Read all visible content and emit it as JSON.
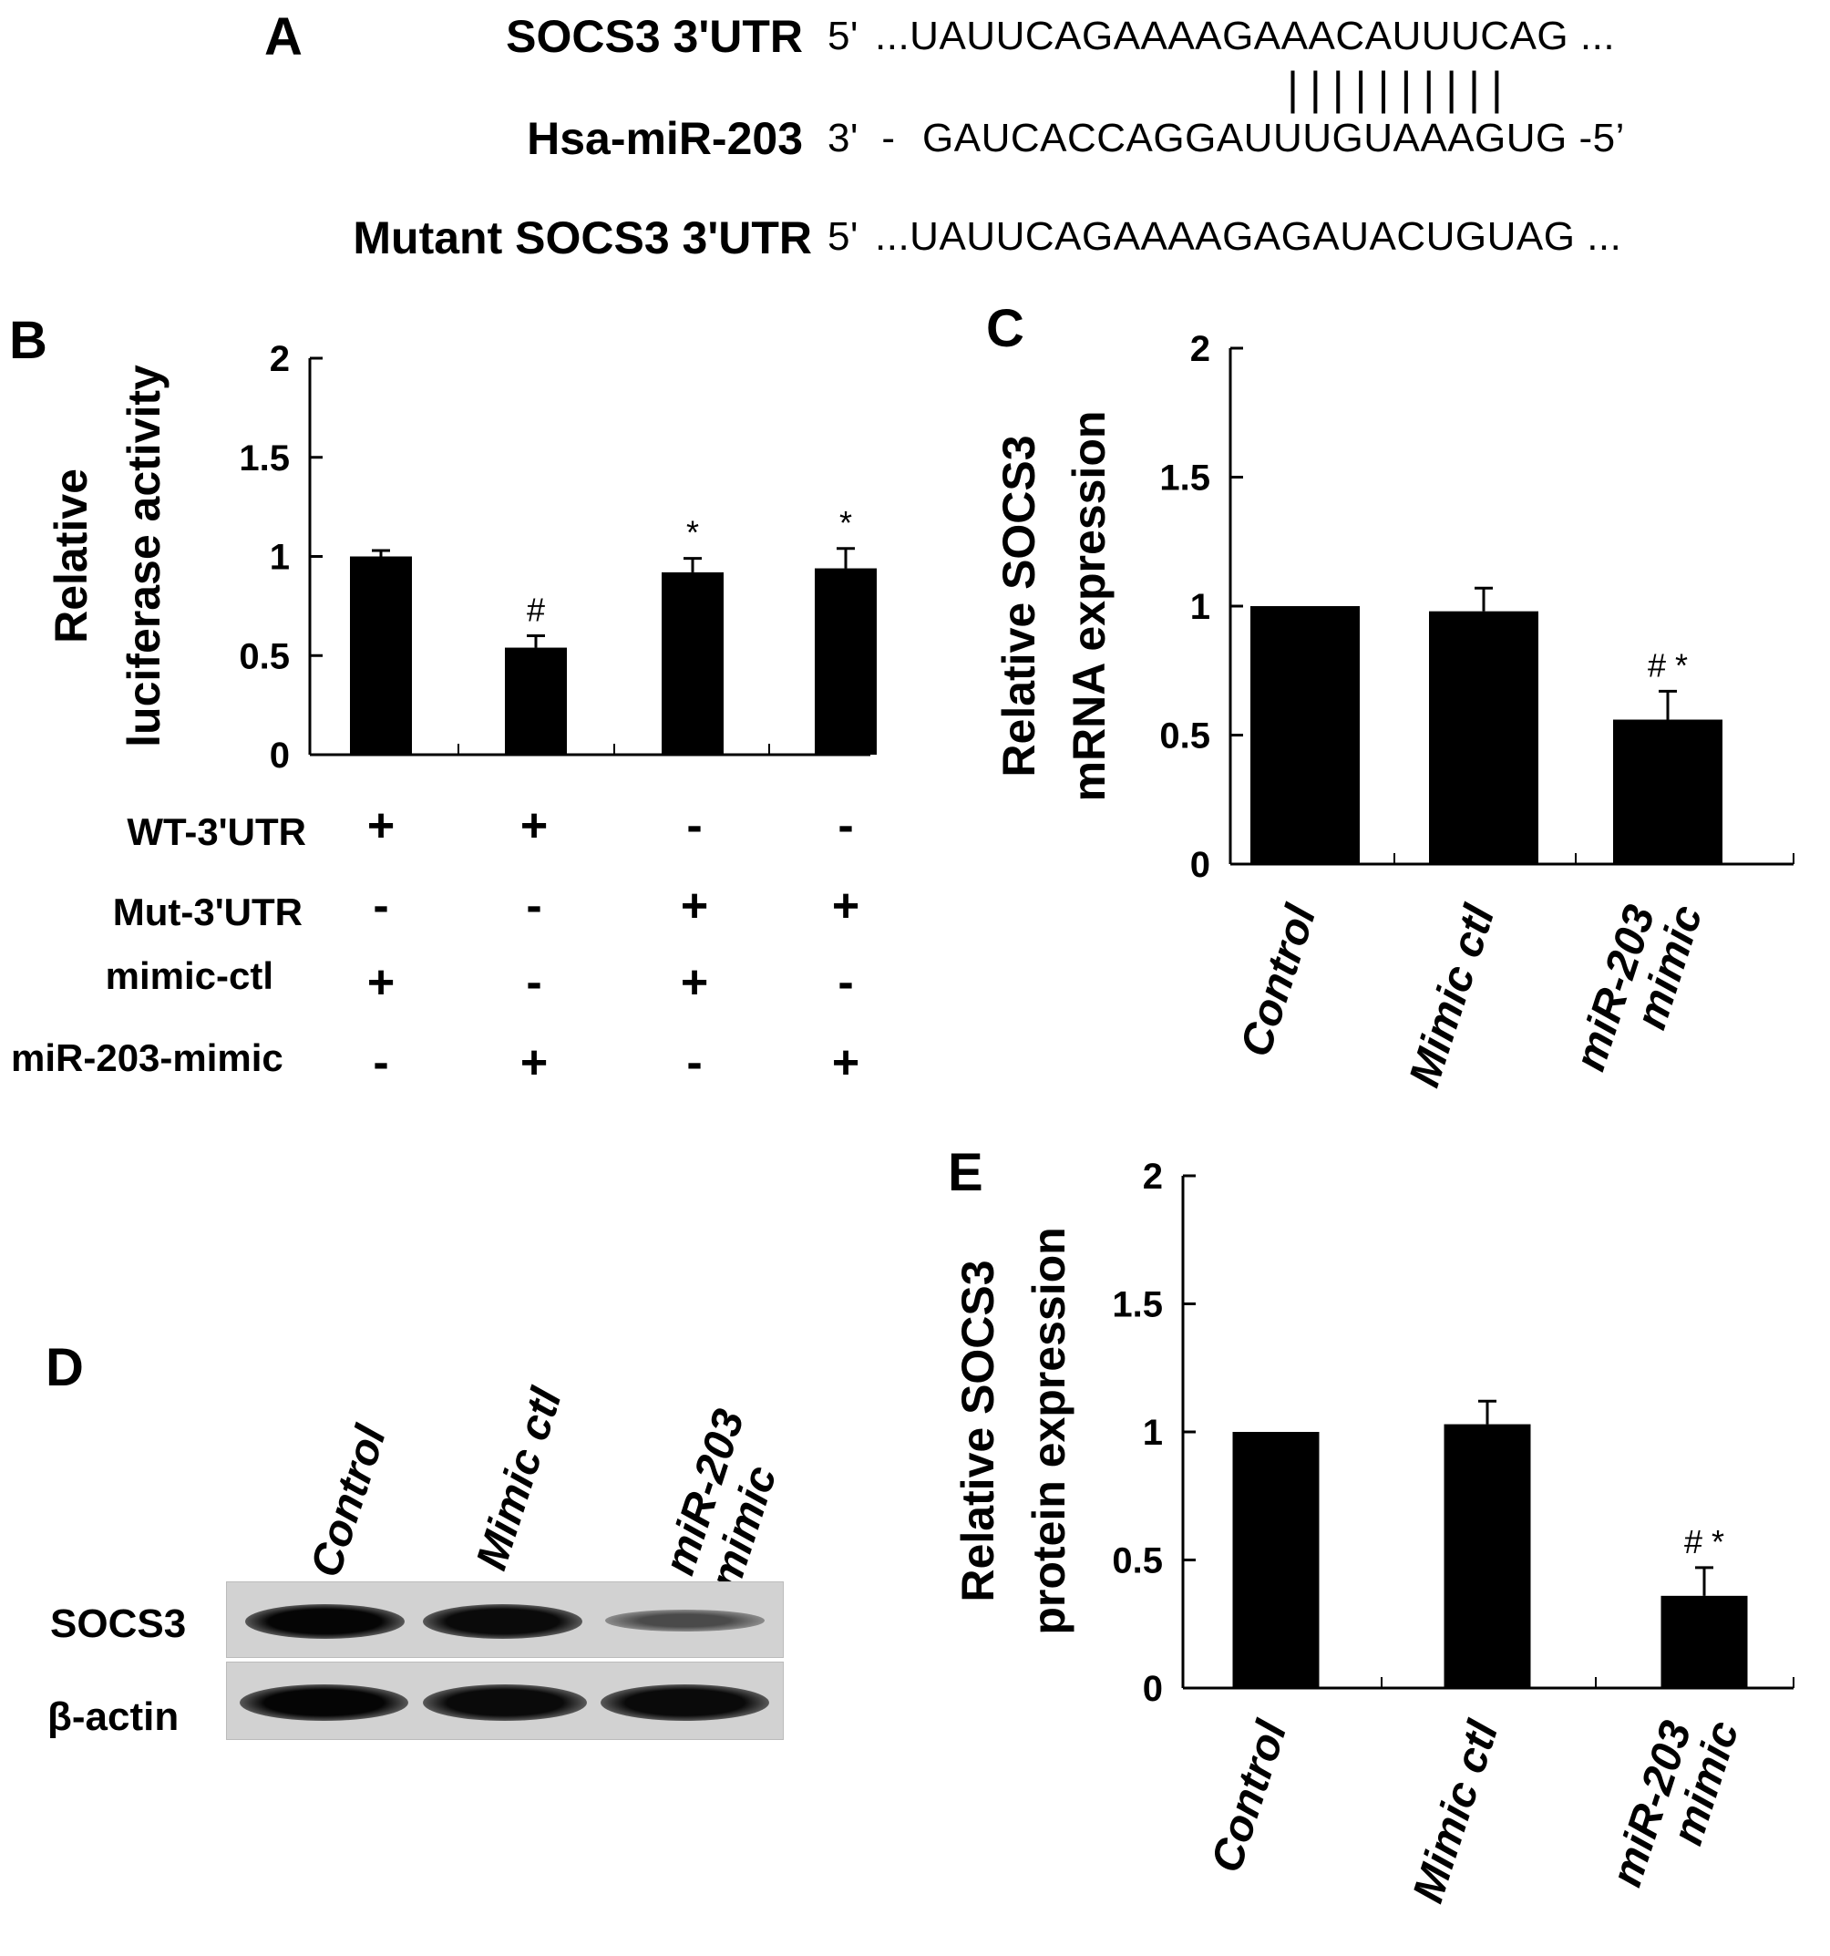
{
  "panel_a": {
    "letter": "A",
    "rows": [
      {
        "label": "SOCS3 3'UTR",
        "prefix": "5'",
        "sequence": "...UAUUCAGAAAAGAAACAUUUCAG ..."
      },
      {
        "label": "Hsa-miR-203",
        "prefix": "3'  -",
        "sequence": "GAUCACCAGGAUUUGUAAAGUG -5’"
      },
      {
        "label": "Mutant SOCS3 3'UTR",
        "prefix": "5'",
        "sequence": "...UAUUCAGAAAAGAGAUACUGUAG ..."
      }
    ],
    "pairing": "| | | | | | | | | |"
  },
  "panel_b": {
    "letter": "B",
    "conditions": [
      {
        "label": "WT-3'UTR",
        "signs": [
          "+",
          "+",
          "-",
          "-"
        ]
      },
      {
        "label": "Mut-3'UTR",
        "signs": [
          "-",
          "-",
          "+",
          "+"
        ]
      },
      {
        "label": "mimic-ctl",
        "signs": [
          "+",
          "-",
          "+",
          "-"
        ]
      },
      {
        "label": "miR-203-mimic",
        "signs": [
          "-",
          "+",
          "-",
          "+"
        ]
      }
    ]
  },
  "panel_d": {
    "letter": "D",
    "lanes": [
      "Control",
      "Mimic ctl",
      "miR-203 mimic"
    ],
    "rows": [
      "SOCS3",
      "β-actin"
    ],
    "band_intensity": {
      "SOCS3": [
        1.0,
        1.0,
        0.45
      ],
      "β-actin": [
        1.0,
        1.0,
        1.0
      ]
    }
  },
  "chart_data": [
    {
      "panel": "B",
      "type": "bar",
      "ylabel": "Relative luciferase activity",
      "ylabel_lines": [
        "Relative",
        "luciferase activity"
      ],
      "categories": [
        "",
        "",
        "",
        ""
      ],
      "values": [
        1.0,
        0.54,
        0.92,
        0.94
      ],
      "errors": [
        0.03,
        0.06,
        0.07,
        0.1
      ],
      "annotations": [
        "",
        "#",
        "*",
        "*"
      ],
      "ylim": [
        0,
        2
      ],
      "yticks": [
        0,
        0.5,
        1,
        1.5,
        2
      ],
      "ytick_labels": [
        "0",
        "0.5",
        "1",
        "1.5",
        "2"
      ],
      "color": "#000000"
    },
    {
      "panel": "C",
      "type": "bar",
      "ylabel": "Relative SOCS3 mRNA expression",
      "ylabel_lines": [
        "Relative SOCS3",
        "mRNA expression"
      ],
      "categories": [
        "Control",
        "Mimic ctl",
        "miR-203 mimic"
      ],
      "values": [
        1.0,
        0.98,
        0.56
      ],
      "errors": [
        0,
        0.09,
        0.11
      ],
      "annotations": [
        "",
        "",
        "# *"
      ],
      "ylim": [
        0,
        2
      ],
      "yticks": [
        0,
        0.5,
        1,
        1.5,
        2
      ],
      "ytick_labels": [
        "0",
        "0.5",
        "1",
        "1.5",
        "2"
      ],
      "color": "#000000"
    },
    {
      "panel": "E",
      "type": "bar",
      "ylabel": "Relative SOCS3 protein expression",
      "ylabel_lines": [
        "Relative SOCS3",
        "protein expression"
      ],
      "categories": [
        "Control",
        "Mimic ctl",
        "miR-203 mimic"
      ],
      "values": [
        1.0,
        1.03,
        0.36
      ],
      "errors": [
        0,
        0.09,
        0.11
      ],
      "annotations": [
        "",
        "",
        "# *"
      ],
      "ylim": [
        0,
        2
      ],
      "yticks": [
        0,
        0.5,
        1,
        1.5,
        2
      ],
      "ytick_labels": [
        "0",
        "0.5",
        "1",
        "1.5",
        "2"
      ],
      "color": "#000000"
    }
  ]
}
